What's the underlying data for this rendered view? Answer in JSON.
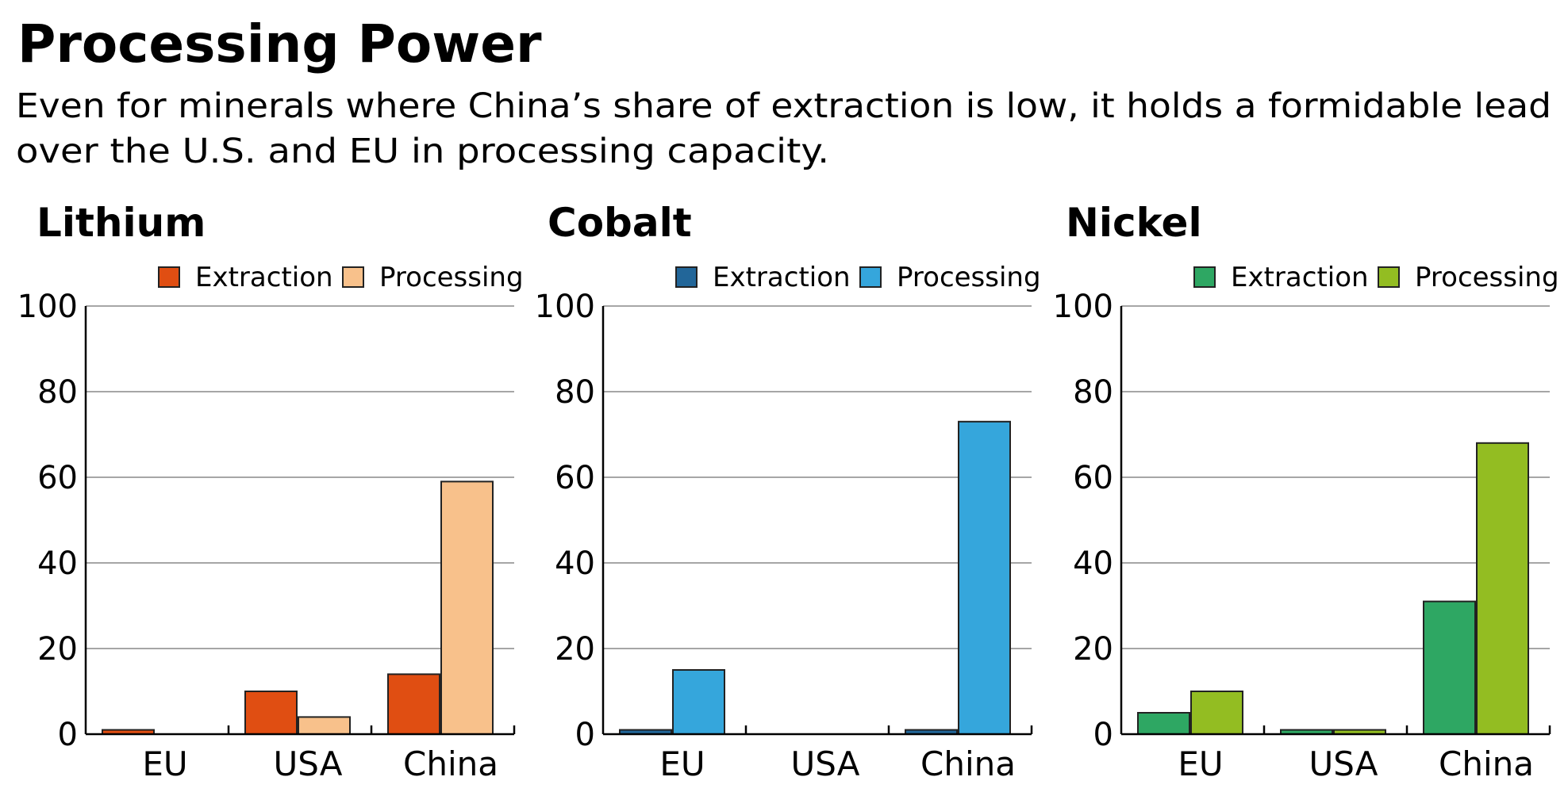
{
  "header": {
    "title": "Processing Power",
    "subtitle_lines": [
      "Even for minerals where China’s share of extraction is low, it holds a formidable lead",
      "over the U.S. and EU in processing capacity."
    ]
  },
  "chart_data": [
    {
      "type": "bar",
      "title": "Lithium",
      "categories": [
        "EU",
        "USA",
        "China"
      ],
      "series": [
        {
          "name": "Extraction",
          "values": [
            1,
            10,
            14
          ],
          "color": "#e04e12"
        },
        {
          "name": "Processing",
          "values": [
            0,
            4,
            59
          ],
          "color": "#f8c18b"
        }
      ],
      "yticks": [
        "0",
        "20",
        "40",
        "60",
        "80",
        "100"
      ],
      "ylim": [
        0,
        100
      ],
      "grid": true,
      "legend": "top-right"
    },
    {
      "type": "bar",
      "title": "Cobalt",
      "categories": [
        "EU",
        "USA",
        "China"
      ],
      "series": [
        {
          "name": "Extraction",
          "values": [
            1,
            0,
            1
          ],
          "color": "#226699"
        },
        {
          "name": "Processing",
          "values": [
            15,
            0,
            73
          ],
          "color": "#35a6dc"
        }
      ],
      "yticks": [
        "0",
        "20",
        "40",
        "60",
        "80",
        "100"
      ],
      "ylim": [
        0,
        100
      ],
      "grid": true,
      "legend": "top-right"
    },
    {
      "type": "bar",
      "title": "Nickel",
      "categories": [
        "EU",
        "USA",
        "China"
      ],
      "series": [
        {
          "name": "Extraction",
          "values": [
            5,
            1,
            31
          ],
          "color": "#2ea763"
        },
        {
          "name": "Processing",
          "values": [
            10,
            1,
            68
          ],
          "color": "#93bd22"
        }
      ],
      "yticks": [
        "0",
        "20",
        "40",
        "60",
        "80",
        "100"
      ],
      "ylim": [
        0,
        100
      ],
      "grid": true,
      "legend": "top-right"
    }
  ]
}
